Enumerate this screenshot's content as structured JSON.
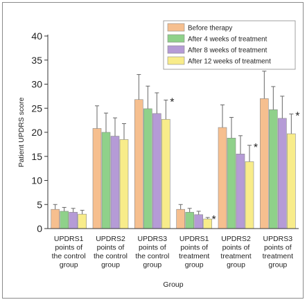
{
  "chart_data": {
    "type": "bar",
    "xlabel": "Group",
    "ylabel": "Patient UPDRS score",
    "ylim": [
      0,
      40
    ],
    "yticks": [
      0,
      5,
      10,
      15,
      20,
      25,
      30,
      35,
      40
    ],
    "grid": false,
    "legend_position": "top-right",
    "categories": [
      [
        "UPDRS1",
        "points of",
        "the control",
        "group"
      ],
      [
        "UPDRS2",
        "points of",
        "the control",
        "group"
      ],
      [
        "UPDRS3",
        "points of",
        "the control",
        "group"
      ],
      [
        "UPDRS1",
        "points of",
        "treatment",
        "group"
      ],
      [
        "UPDRS2",
        "points of",
        "treatment",
        "group"
      ],
      [
        "UPDRS3",
        "points of",
        "treatment",
        "group"
      ]
    ],
    "series": [
      {
        "name": "Before therapy",
        "color": "#f6bf8f",
        "values": [
          4.0,
          20.8,
          26.8,
          4.0,
          21.0,
          27.0
        ],
        "errors": [
          1.0,
          4.7,
          5.2,
          1.0,
          4.7,
          5.7
        ]
      },
      {
        "name": "After 4 weeks of treatment",
        "color": "#8fd18a",
        "values": [
          3.6,
          20.0,
          24.9,
          3.4,
          18.8,
          24.7
        ],
        "errors": [
          0.8,
          4.0,
          4.7,
          0.8,
          4.3,
          4.8
        ]
      },
      {
        "name": "After 8 weeks of treatment",
        "color": "#b59bd6",
        "values": [
          3.4,
          19.2,
          23.9,
          2.9,
          15.5,
          22.9
        ],
        "errors": [
          0.8,
          3.8,
          4.3,
          0.7,
          3.8,
          4.6
        ]
      },
      {
        "name": "After 12 weeks of treatment",
        "color": "#f8ec8a",
        "values": [
          3.0,
          18.5,
          22.7,
          2.0,
          13.9,
          19.7
        ],
        "errors": [
          0.8,
          3.3,
          4.0,
          0.3,
          3.4,
          4.1
        ]
      }
    ],
    "annotations": [
      {
        "text": "*",
        "category_index": 2,
        "series_index": 3
      },
      {
        "text": "*",
        "category_index": 3,
        "series_index": 3
      },
      {
        "text": "*",
        "category_index": 4,
        "series_index": 3
      },
      {
        "text": "*",
        "category_index": 5,
        "series_index": 3
      }
    ]
  }
}
